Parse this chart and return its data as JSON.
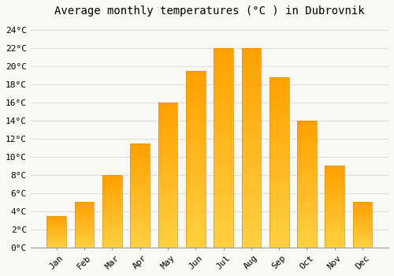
{
  "title": "Average monthly temperatures (°C ) in Dubrovnik",
  "months": [
    "Jan",
    "Feb",
    "Mar",
    "Apr",
    "May",
    "Jun",
    "Jul",
    "Aug",
    "Sep",
    "Oct",
    "Nov",
    "Dec"
  ],
  "temperatures": [
    3.5,
    5.0,
    8.0,
    11.5,
    16.0,
    19.5,
    22.0,
    22.0,
    18.8,
    14.0,
    9.0,
    5.0
  ],
  "bar_color_bottom": "#FFD040",
  "bar_color_top": "#FFA500",
  "bar_edge_color": "#E89000",
  "background_color": "#F8F8F5",
  "grid_color": "#DDDDDD",
  "ylim": [
    0,
    25
  ],
  "ytick_step": 2,
  "title_fontsize": 10,
  "tick_fontsize": 8,
  "font_family": "monospace"
}
